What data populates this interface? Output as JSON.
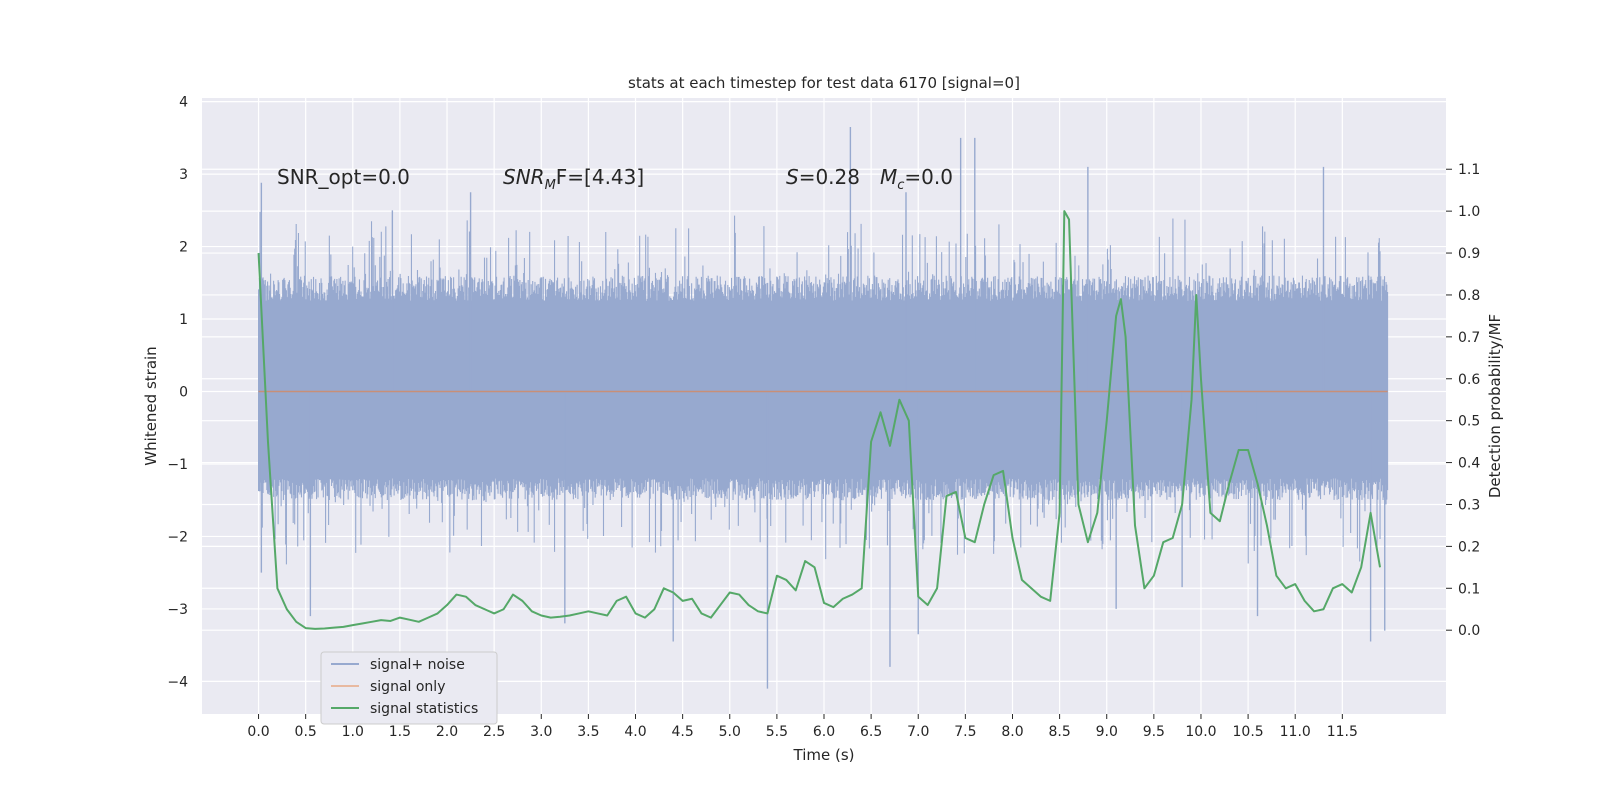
{
  "chart_data": {
    "type": "line",
    "title": "stats at each timestep for test data 6170 [signal=0]",
    "xlabel": "Time (s)",
    "ylabel": "Whitened strain",
    "y2label": "Detection probability/MF",
    "xlim": [
      -0.6,
      12.6
    ],
    "ylim": [
      -4.45,
      4.05
    ],
    "y2lim": [
      -0.2,
      1.27
    ],
    "x_ticks": [
      0.0,
      0.5,
      1.0,
      1.5,
      2.0,
      2.5,
      3.0,
      3.5,
      4.0,
      4.5,
      5.0,
      5.5,
      6.0,
      6.5,
      7.0,
      7.5,
      8.0,
      8.5,
      9.0,
      9.5,
      10.0,
      10.5,
      11.0,
      11.5
    ],
    "x_tick_labels": [
      "0.0",
      "0.5",
      "1.0",
      "1.5",
      "2.0",
      "2.5",
      "3.0",
      "3.5",
      "4.0",
      "4.5",
      "5.0",
      "5.5",
      "6.0",
      "6.5",
      "7.0",
      "7.5",
      "8.0",
      "8.5",
      "9.0",
      "9.5",
      "10.0",
      "10.5",
      "11.0",
      "11.5"
    ],
    "y_ticks": [
      4,
      3,
      2,
      1,
      0,
      -1,
      -2,
      -3,
      -4
    ],
    "y_tick_labels": [
      "4",
      "3",
      "2",
      "1",
      "0",
      "−1",
      "−2",
      "−3",
      "−4"
    ],
    "y2_ticks": [
      1.1,
      1.0,
      0.9,
      0.8,
      0.7,
      0.6,
      0.5,
      0.4,
      0.3,
      0.2,
      0.1,
      0.0
    ],
    "y2_tick_labels": [
      "1.1",
      "1.0",
      "0.9",
      "0.8",
      "0.7",
      "0.6",
      "0.5",
      "0.4",
      "0.3",
      "0.2",
      "0.1",
      "0.0"
    ],
    "grid": true,
    "legend_position": "lower-left",
    "annotations": {
      "snr_opt": "SNR_opt=0.0",
      "snr_mf_main": "SNR",
      "snr_mf_sub": "M",
      "snr_mf_rest": "F=[4.43]",
      "s_main": "S",
      "s_rest": "=0.28",
      "mc_main": "M",
      "mc_sub": "c",
      "mc_rest": "=0.0"
    },
    "series": [
      {
        "name": "signal+ noise",
        "color": "#97a9cf",
        "axis": "left",
        "style": "noise",
        "x_range": [
          0.0,
          11.98
        ],
        "typical_envelope": [
          -1.5,
          1.6
        ],
        "spikes": [
          [
            0.03,
            2.88
          ],
          [
            0.03,
            -2.5
          ],
          [
            0.55,
            -3.1
          ],
          [
            1.42,
            2.5
          ],
          [
            2.25,
            2.75
          ],
          [
            3.25,
            -3.2
          ],
          [
            4.4,
            -3.45
          ],
          [
            5.4,
            -4.1
          ],
          [
            6.28,
            3.65
          ],
          [
            6.7,
            -3.8
          ],
          [
            6.87,
            2.75
          ],
          [
            7.0,
            -3.35
          ],
          [
            7.45,
            3.5
          ],
          [
            7.6,
            3.5
          ],
          [
            8.8,
            3.1
          ],
          [
            9.1,
            -3.0
          ],
          [
            9.8,
            -2.7
          ],
          [
            10.6,
            -3.1
          ],
          [
            11.3,
            3.1
          ],
          [
            11.8,
            -3.45
          ],
          [
            11.95,
            -3.3
          ]
        ]
      },
      {
        "name": "signal only",
        "color": "#dd8452",
        "axis": "left",
        "x": [
          0.0,
          11.98
        ],
        "y": [
          0.0,
          0.0
        ]
      },
      {
        "name": "signal statistics",
        "color": "#55a868",
        "axis": "right",
        "x": [
          0.0,
          0.1,
          0.2,
          0.3,
          0.4,
          0.5,
          0.6,
          0.7,
          0.8,
          0.9,
          1.0,
          1.1,
          1.2,
          1.3,
          1.4,
          1.5,
          1.6,
          1.7,
          1.8,
          1.9,
          2.0,
          2.1,
          2.2,
          2.3,
          2.4,
          2.5,
          2.6,
          2.7,
          2.8,
          2.9,
          3.0,
          3.1,
          3.2,
          3.3,
          3.4,
          3.5,
          3.6,
          3.7,
          3.8,
          3.9,
          4.0,
          4.1,
          4.2,
          4.3,
          4.4,
          4.5,
          4.6,
          4.7,
          4.8,
          4.9,
          5.0,
          5.1,
          5.2,
          5.3,
          5.4,
          5.5,
          5.6,
          5.7,
          5.8,
          5.9,
          6.0,
          6.1,
          6.2,
          6.3,
          6.4,
          6.5,
          6.6,
          6.7,
          6.8,
          6.9,
          7.0,
          7.1,
          7.2,
          7.3,
          7.4,
          7.5,
          7.6,
          7.7,
          7.8,
          7.9,
          8.0,
          8.1,
          8.2,
          8.3,
          8.4,
          8.5,
          8.55,
          8.6,
          8.7,
          8.8,
          8.9,
          9.0,
          9.1,
          9.15,
          9.2,
          9.3,
          9.4,
          9.5,
          9.6,
          9.7,
          9.8,
          9.9,
          9.95,
          10.0,
          10.1,
          10.2,
          10.3,
          10.4,
          10.5,
          10.6,
          10.7,
          10.8,
          10.9,
          11.0,
          11.1,
          11.2,
          11.3,
          11.4,
          11.5,
          11.6,
          11.7,
          11.8,
          11.9
        ],
        "y": [
          0.9,
          0.45,
          0.1,
          0.05,
          0.02,
          0.005,
          0.003,
          0.004,
          0.006,
          0.008,
          0.012,
          0.016,
          0.02,
          0.024,
          0.022,
          0.03,
          0.025,
          0.02,
          0.03,
          0.04,
          0.06,
          0.085,
          0.08,
          0.06,
          0.05,
          0.04,
          0.05,
          0.085,
          0.07,
          0.045,
          0.035,
          0.03,
          0.032,
          0.035,
          0.04,
          0.045,
          0.04,
          0.035,
          0.07,
          0.08,
          0.04,
          0.03,
          0.05,
          0.1,
          0.09,
          0.07,
          0.075,
          0.04,
          0.03,
          0.06,
          0.09,
          0.085,
          0.06,
          0.045,
          0.04,
          0.13,
          0.12,
          0.095,
          0.165,
          0.15,
          0.065,
          0.055,
          0.075,
          0.085,
          0.1,
          0.45,
          0.52,
          0.44,
          0.55,
          0.5,
          0.08,
          0.06,
          0.1,
          0.32,
          0.33,
          0.22,
          0.21,
          0.3,
          0.37,
          0.38,
          0.22,
          0.12,
          0.1,
          0.08,
          0.07,
          0.28,
          1.0,
          0.98,
          0.3,
          0.21,
          0.28,
          0.5,
          0.75,
          0.79,
          0.7,
          0.25,
          0.1,
          0.13,
          0.21,
          0.22,
          0.3,
          0.55,
          0.8,
          0.6,
          0.28,
          0.26,
          0.35,
          0.43,
          0.43,
          0.35,
          0.25,
          0.13,
          0.1,
          0.11,
          0.07,
          0.045,
          0.05,
          0.1,
          0.11,
          0.09,
          0.15,
          0.28,
          0.15
        ]
      }
    ]
  }
}
